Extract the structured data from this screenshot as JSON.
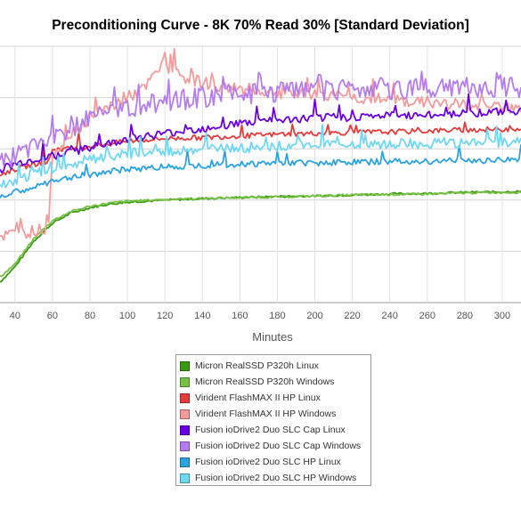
{
  "chart_data": {
    "type": "line",
    "title": "Preconditioning Curve - 8K 70% Read 30% [Standard Deviation]",
    "xlabel": "Minutes",
    "ylabel": "",
    "xlim": [
      32,
      310
    ],
    "ylim": [
      0,
      5
    ],
    "x_tick_labels": [
      "40",
      "60",
      "80",
      "100",
      "120",
      "140",
      "160",
      "180",
      "200",
      "220",
      "240",
      "260",
      "280",
      "300"
    ],
    "x_ticks": [
      40,
      60,
      80,
      100,
      120,
      140,
      160,
      180,
      200,
      220,
      240,
      260,
      280,
      300
    ],
    "y_tick_labels": [],
    "grid": true,
    "legend_position": "bottom-center",
    "series": [
      {
        "name": "Micron RealSSD P320h Linux",
        "color": "#3a9a12",
        "points": [
          [
            32,
            0.4
          ],
          [
            40,
            0.7
          ],
          [
            50,
            1.2
          ],
          [
            60,
            1.55
          ],
          [
            70,
            1.75
          ],
          [
            80,
            1.85
          ],
          [
            90,
            1.92
          ],
          [
            100,
            1.96
          ],
          [
            120,
            2.0
          ],
          [
            140,
            2.03
          ],
          [
            160,
            2.05
          ],
          [
            180,
            2.07
          ],
          [
            200,
            2.08
          ],
          [
            220,
            2.1
          ],
          [
            240,
            2.12
          ],
          [
            260,
            2.13
          ],
          [
            280,
            2.15
          ],
          [
            300,
            2.16
          ],
          [
            310,
            2.17
          ]
        ]
      },
      {
        "name": "Micron RealSSD P320h Windows",
        "color": "#76c043",
        "points": [
          [
            32,
            0.5
          ],
          [
            40,
            0.75
          ],
          [
            50,
            1.25
          ],
          [
            60,
            1.6
          ],
          [
            70,
            1.78
          ],
          [
            80,
            1.88
          ],
          [
            90,
            1.94
          ],
          [
            100,
            1.98
          ],
          [
            120,
            2.01
          ],
          [
            140,
            2.03
          ],
          [
            160,
            2.05
          ],
          [
            180,
            2.06
          ],
          [
            200,
            2.08
          ],
          [
            220,
            2.1
          ],
          [
            240,
            2.11
          ],
          [
            260,
            2.12
          ],
          [
            280,
            2.14
          ],
          [
            300,
            2.15
          ],
          [
            310,
            2.15
          ]
        ]
      },
      {
        "name": "Virident FlashMAX II HP Linux",
        "color": "#e53b3b",
        "points": [
          [
            32,
            2.5
          ],
          [
            40,
            2.6
          ],
          [
            50,
            2.7
          ],
          [
            58,
            2.75
          ],
          [
            60,
            3.0
          ],
          [
            70,
            3.0
          ],
          [
            80,
            3.05
          ],
          [
            90,
            3.1
          ],
          [
            100,
            3.15
          ],
          [
            120,
            3.2
          ],
          [
            140,
            3.22
          ],
          [
            160,
            3.25
          ],
          [
            180,
            3.28
          ],
          [
            200,
            3.3
          ],
          [
            220,
            3.32
          ],
          [
            240,
            3.33
          ],
          [
            260,
            3.35
          ],
          [
            280,
            3.37
          ],
          [
            300,
            3.38
          ],
          [
            310,
            3.4
          ]
        ]
      },
      {
        "name": "Virident FlashMAX II HP Windows",
        "color": "#f59a9a",
        "points": [
          [
            32,
            1.3
          ],
          [
            40,
            1.35
          ],
          [
            50,
            1.4
          ],
          [
            58,
            1.45
          ],
          [
            60,
            2.9
          ],
          [
            70,
            3.3
          ],
          [
            80,
            3.6
          ],
          [
            90,
            3.8
          ],
          [
            100,
            4.0
          ],
          [
            110,
            4.2
          ],
          [
            115,
            4.5
          ],
          [
            120,
            4.6
          ],
          [
            130,
            4.4
          ],
          [
            140,
            4.3
          ],
          [
            150,
            4.2
          ],
          [
            160,
            4.15
          ],
          [
            180,
            4.1
          ],
          [
            200,
            4.05
          ],
          [
            220,
            4.0
          ],
          [
            240,
            3.95
          ],
          [
            260,
            3.9
          ],
          [
            280,
            3.85
          ],
          [
            300,
            3.8
          ],
          [
            310,
            3.8
          ]
        ]
      },
      {
        "name": "Fusion ioDrive2 Duo SLC Cap Linux",
        "color": "#6a00e6",
        "points": [
          [
            32,
            2.6
          ],
          [
            40,
            2.7
          ],
          [
            50,
            2.8
          ],
          [
            60,
            2.85
          ],
          [
            70,
            2.95
          ],
          [
            80,
            3.0
          ],
          [
            90,
            3.1
          ],
          [
            100,
            3.2
          ],
          [
            120,
            3.3
          ],
          [
            140,
            3.4
          ],
          [
            160,
            3.5
          ],
          [
            180,
            3.55
          ],
          [
            200,
            3.6
          ],
          [
            220,
            3.62
          ],
          [
            240,
            3.65
          ],
          [
            260,
            3.65
          ],
          [
            280,
            3.7
          ],
          [
            300,
            3.72
          ],
          [
            310,
            3.75
          ]
        ]
      },
      {
        "name": "Fusion ioDrive2 Duo SLC Cap Windows",
        "color": "#b57bf0",
        "points": [
          [
            32,
            2.7
          ],
          [
            40,
            2.85
          ],
          [
            50,
            3.0
          ],
          [
            60,
            3.2
          ],
          [
            70,
            3.4
          ],
          [
            80,
            3.6
          ],
          [
            90,
            3.7
          ],
          [
            100,
            3.8
          ],
          [
            120,
            3.9
          ],
          [
            140,
            4.0
          ],
          [
            160,
            4.05
          ],
          [
            180,
            4.1
          ],
          [
            200,
            4.12
          ],
          [
            220,
            4.15
          ],
          [
            240,
            4.15
          ],
          [
            260,
            4.18
          ],
          [
            280,
            4.2
          ],
          [
            300,
            4.2
          ],
          [
            310,
            4.2
          ]
        ]
      },
      {
        "name": "Fusion ioDrive2 Duo SLC HP Linux",
        "color": "#2aa3e0",
        "points": [
          [
            32,
            2.05
          ],
          [
            40,
            2.15
          ],
          [
            50,
            2.25
          ],
          [
            60,
            2.35
          ],
          [
            70,
            2.45
          ],
          [
            80,
            2.5
          ],
          [
            90,
            2.55
          ],
          [
            100,
            2.6
          ],
          [
            120,
            2.65
          ],
          [
            140,
            2.68
          ],
          [
            160,
            2.7
          ],
          [
            180,
            2.72
          ],
          [
            200,
            2.73
          ],
          [
            220,
            2.74
          ],
          [
            240,
            2.75
          ],
          [
            260,
            2.76
          ],
          [
            280,
            2.77
          ],
          [
            300,
            2.78
          ],
          [
            310,
            2.8
          ]
        ]
      },
      {
        "name": "Fusion ioDrive2 Duo SLC HP Windows",
        "color": "#6fd8f5",
        "points": [
          [
            32,
            2.25
          ],
          [
            40,
            2.4
          ],
          [
            50,
            2.5
          ],
          [
            60,
            2.6
          ],
          [
            70,
            2.7
          ],
          [
            80,
            2.8
          ],
          [
            90,
            2.85
          ],
          [
            100,
            2.9
          ],
          [
            120,
            2.95
          ],
          [
            140,
            3.0
          ],
          [
            160,
            3.02
          ],
          [
            180,
            3.05
          ],
          [
            200,
            3.07
          ],
          [
            220,
            3.08
          ],
          [
            240,
            3.1
          ],
          [
            260,
            3.1
          ],
          [
            280,
            3.12
          ],
          [
            300,
            3.12
          ],
          [
            310,
            3.15
          ]
        ]
      }
    ]
  }
}
